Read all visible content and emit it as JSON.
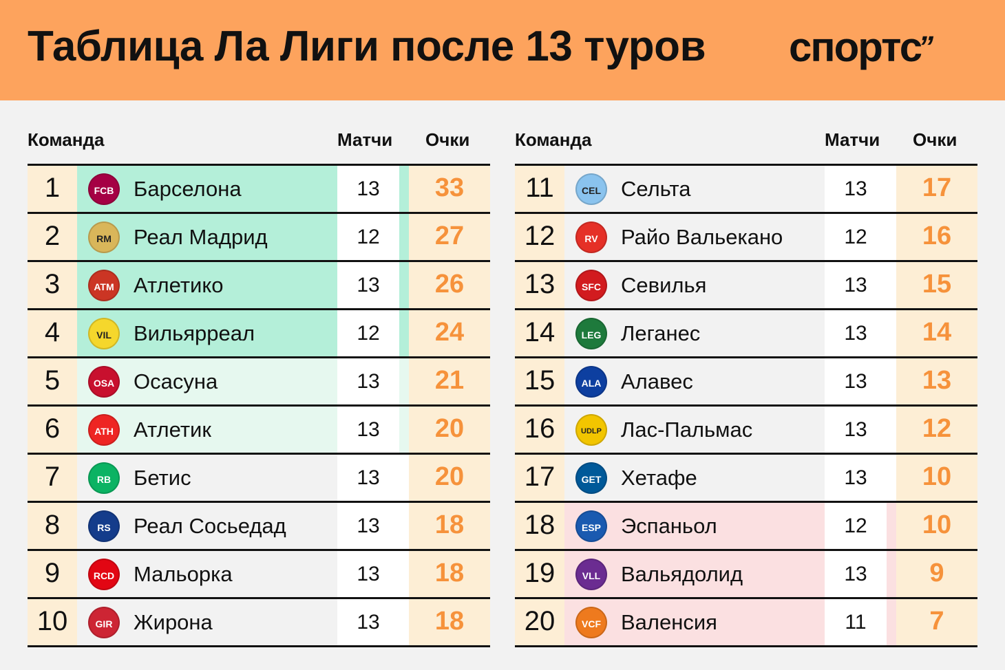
{
  "header": {
    "title": "Таблица Ла Лиги после 13 туров",
    "logo": "спортс",
    "logo_mark": "”",
    "background_color": "#fda35d"
  },
  "columns": {
    "team": "Команда",
    "matches": "Матчи",
    "points": "Очки"
  },
  "colors": {
    "champions_league_zone": "#b4efd9",
    "europa_zone": "#e6f8ef",
    "relegation_zone": "#fbe0e1",
    "points_text": "#f6923b",
    "cell_cream": "#fdeed5"
  },
  "left_table": [
    {
      "pos": "1",
      "team": "Барселона",
      "matches": "13",
      "points": "33",
      "zone": "cl",
      "badge_icon": "barcelona-crest-icon",
      "badge_color": "#a50044",
      "badge_text": "FCB"
    },
    {
      "pos": "2",
      "team": "Реал Мадрид",
      "matches": "12",
      "points": "27",
      "zone": "cl",
      "badge_icon": "real-madrid-crest-icon",
      "badge_color": "#d9b65a",
      "badge_text": "RM"
    },
    {
      "pos": "3",
      "team": "Атлетико",
      "matches": "13",
      "points": "26",
      "zone": "cl",
      "badge_icon": "atletico-crest-icon",
      "badge_color": "#cb3524",
      "badge_text": "ATM"
    },
    {
      "pos": "4",
      "team": "Вильярреал",
      "matches": "12",
      "points": "24",
      "zone": "cl",
      "badge_icon": "villarreal-crest-icon",
      "badge_color": "#f5d72c",
      "badge_text": "VIL"
    },
    {
      "pos": "5",
      "team": "Осасуна",
      "matches": "13",
      "points": "21",
      "zone": "el",
      "badge_icon": "osasuna-crest-icon",
      "badge_color": "#c8102e",
      "badge_text": "OSA"
    },
    {
      "pos": "6",
      "team": "Атлетик",
      "matches": "13",
      "points": "20",
      "zone": "el",
      "badge_icon": "athletic-crest-icon",
      "badge_color": "#ee2523",
      "badge_text": "ATH"
    },
    {
      "pos": "7",
      "team": "Бетис",
      "matches": "13",
      "points": "20",
      "zone": "none",
      "badge_icon": "betis-crest-icon",
      "badge_color": "#0bb363",
      "badge_text": "RB"
    },
    {
      "pos": "8",
      "team": "Реал Сосьедад",
      "matches": "13",
      "points": "18",
      "zone": "none",
      "badge_icon": "real-sociedad-crest-icon",
      "badge_color": "#143c8b",
      "badge_text": "RS"
    },
    {
      "pos": "9",
      "team": "Мальорка",
      "matches": "13",
      "points": "18",
      "zone": "none",
      "badge_icon": "mallorca-crest-icon",
      "badge_color": "#e20613",
      "badge_text": "RCD"
    },
    {
      "pos": "10",
      "team": "Жирона",
      "matches": "13",
      "points": "18",
      "zone": "none",
      "badge_icon": "girona-crest-icon",
      "badge_color": "#cd2534",
      "badge_text": "GIR"
    }
  ],
  "right_table": [
    {
      "pos": "11",
      "team": "Сельта",
      "matches": "13",
      "points": "17",
      "zone": "none",
      "badge_icon": "celta-crest-icon",
      "badge_color": "#8ac3ee",
      "badge_text": "CEL"
    },
    {
      "pos": "12",
      "team": "Райо Вальекано",
      "matches": "12",
      "points": "16",
      "zone": "none",
      "badge_icon": "rayo-crest-icon",
      "badge_color": "#e53027",
      "badge_text": "RV"
    },
    {
      "pos": "13",
      "team": "Севилья",
      "matches": "13",
      "points": "15",
      "zone": "none",
      "badge_icon": "sevilla-crest-icon",
      "badge_color": "#d21b1f",
      "badge_text": "SFC"
    },
    {
      "pos": "14",
      "team": "Леганес",
      "matches": "13",
      "points": "14",
      "zone": "none",
      "badge_icon": "leganes-crest-icon",
      "badge_color": "#1e7a3c",
      "badge_text": "LEG"
    },
    {
      "pos": "15",
      "team": "Алавес",
      "matches": "13",
      "points": "13",
      "zone": "none",
      "badge_icon": "alaves-crest-icon",
      "badge_color": "#0d3fa0",
      "badge_text": "ALA"
    },
    {
      "pos": "16",
      "team": "Лас-Пальмас",
      "matches": "13",
      "points": "12",
      "zone": "none",
      "badge_icon": "las-palmas-crest-icon",
      "badge_color": "#f2c500",
      "badge_text": "UDLP"
    },
    {
      "pos": "17",
      "team": "Хетафе",
      "matches": "13",
      "points": "10",
      "zone": "none",
      "badge_icon": "getafe-crest-icon",
      "badge_color": "#005999",
      "badge_text": "GET"
    },
    {
      "pos": "18",
      "team": "Эспаньол",
      "matches": "12",
      "points": "10",
      "zone": "rel",
      "badge_icon": "espanyol-crest-icon",
      "badge_color": "#1a5ab0",
      "badge_text": "ESP"
    },
    {
      "pos": "19",
      "team": "Вальядолид",
      "matches": "13",
      "points": "9",
      "zone": "rel",
      "badge_icon": "valladolid-crest-icon",
      "badge_color": "#6b2c91",
      "badge_text": "VLL"
    },
    {
      "pos": "20",
      "team": "Валенсия",
      "matches": "11",
      "points": "7",
      "zone": "rel",
      "badge_icon": "valencia-crest-icon",
      "badge_color": "#ee7a1e",
      "badge_text": "VCF"
    }
  ]
}
